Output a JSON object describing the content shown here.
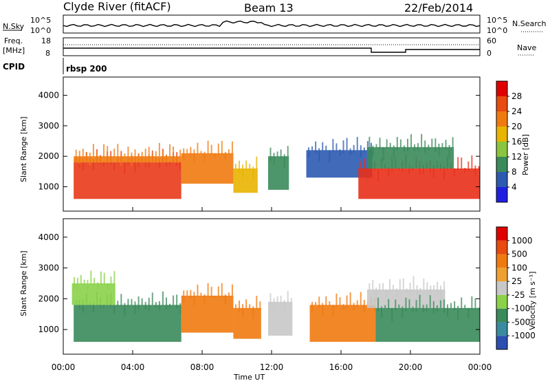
{
  "header": {
    "station": "Clyde River (fitACF)",
    "beam": "Beam 13",
    "date": "22/Feb/2014"
  },
  "strips": {
    "nsky_label": "N.Sky",
    "nsearch_label": "N.Search",
    "nsky_ticks": [
      "10^5",
      "10^0"
    ],
    "nsearch_ticks": [
      "10^5",
      "10^0"
    ],
    "freq_label": "Freq.",
    "freq_unit": "[MHz]",
    "freq_ticks": [
      "18",
      "8"
    ],
    "nave_label": "Nave",
    "nave_ticks": [
      "60",
      "0"
    ],
    "cpid_label": "CPID",
    "cpid_value": "rbsp 200"
  },
  "x_axis": {
    "label": "Time UT",
    "ticks": [
      "00:00",
      "04:00",
      "08:00",
      "12:00",
      "16:00",
      "20:00",
      "00:00"
    ]
  },
  "chart_data": [
    {
      "type": "heatmap",
      "panel": "power",
      "ylabel": "Slant Range [km]",
      "xlabel": "Time UT",
      "yticks": [
        1000,
        2000,
        3000,
        4000
      ],
      "ylim": [
        200,
        4600
      ],
      "xlim_hours": [
        0,
        24
      ],
      "colorbar_label": "Power [dB]",
      "colorbar_ticks": [
        4,
        8,
        12,
        16,
        20,
        24,
        28
      ],
      "colorbar_colors": [
        "#1f1fe0",
        "#2c5ab0",
        "#3a8a5a",
        "#8bc53f",
        "#e8b400",
        "#f07a10",
        "#e84a10",
        "#e00000"
      ],
      "bands": [
        {
          "t0": 0.6,
          "t1": 6.8,
          "r0": 600,
          "r1": 1800,
          "color": "#e83a18"
        },
        {
          "t0": 0.6,
          "t1": 6.8,
          "r0": 1800,
          "r1": 2000,
          "color": "#f07a10"
        },
        {
          "t0": 6.8,
          "t1": 9.8,
          "r0": 1100,
          "r1": 2100,
          "color": "#f07a10"
        },
        {
          "t0": 9.8,
          "t1": 11.2,
          "r0": 800,
          "r1": 1600,
          "color": "#e8b400"
        },
        {
          "t0": 11.8,
          "t1": 13.0,
          "r0": 900,
          "r1": 2000,
          "color": "#3a8a5a"
        },
        {
          "t0": 14.0,
          "t1": 17.8,
          "r0": 1300,
          "r1": 2200,
          "color": "#2c5ab0"
        },
        {
          "t0": 17.0,
          "t1": 24.0,
          "r0": 600,
          "r1": 1600,
          "color": "#e8301a"
        },
        {
          "t0": 17.5,
          "t1": 22.5,
          "r0": 1600,
          "r1": 2300,
          "color": "#3a8a5a"
        }
      ]
    },
    {
      "type": "heatmap",
      "panel": "velocity",
      "ylabel": "Slant Range [km]",
      "xlabel": "Time UT",
      "yticks": [
        1000,
        2000,
        3000,
        4000
      ],
      "ylim": [
        200,
        4600
      ],
      "xlim_hours": [
        0,
        24
      ],
      "colorbar_label": "Velocity [m s⁻¹]",
      "colorbar_ticks": [
        "1000",
        "500",
        "100",
        "25",
        "-25",
        "-100",
        "-500",
        "-1000"
      ],
      "colorbar_colors": [
        "#2a4fb0",
        "#3a8aa0",
        "#3a8a5a",
        "#8bd24a",
        "#c8c8c8",
        "#f0a030",
        "#f07a10",
        "#e84a10",
        "#e00000"
      ],
      "bands": [
        {
          "t0": 0.6,
          "t1": 6.8,
          "r0": 600,
          "r1": 1800,
          "color": "#3a8a5a"
        },
        {
          "t0": 0.5,
          "t1": 3.0,
          "r0": 1800,
          "r1": 2500,
          "color": "#8bd24a"
        },
        {
          "t0": 6.8,
          "t1": 9.8,
          "r0": 900,
          "r1": 2100,
          "color": "#f07a10"
        },
        {
          "t0": 9.8,
          "t1": 11.4,
          "r0": 700,
          "r1": 1700,
          "color": "#f07a10"
        },
        {
          "t0": 11.8,
          "t1": 13.2,
          "r0": 800,
          "r1": 1900,
          "color": "#c8c8c8"
        },
        {
          "t0": 14.2,
          "t1": 18.0,
          "r0": 600,
          "r1": 1800,
          "color": "#f07a10"
        },
        {
          "t0": 17.5,
          "t1": 22.0,
          "r0": 1700,
          "r1": 2300,
          "color": "#c8c8c8"
        },
        {
          "t0": 18.0,
          "t1": 24.0,
          "r0": 600,
          "r1": 1700,
          "color": "#3a8a5a"
        }
      ]
    }
  ]
}
